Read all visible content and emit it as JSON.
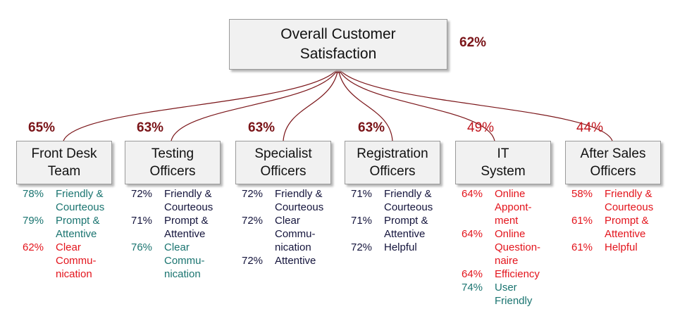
{
  "colors": {
    "good": "#1a7470",
    "bad": "#e3141c",
    "neutral": "#14143c",
    "accent": "#7a1418"
  },
  "root": {
    "title_line1": "Overall Customer",
    "title_line2": "Satisfaction",
    "pct": "62%"
  },
  "groups": [
    {
      "line1": "Front Desk",
      "line2": "Team",
      "pct": "65%",
      "bold": true,
      "items": [
        {
          "pct": "78%",
          "tone": "good",
          "lines": [
            "Friendly &",
            "Courteous"
          ]
        },
        {
          "pct": "79%",
          "tone": "good",
          "lines": [
            "Prompt &",
            "Attentive"
          ]
        },
        {
          "pct": "62%",
          "tone": "bad",
          "lines": [
            "Clear",
            "Commu-",
            "nication"
          ]
        }
      ]
    },
    {
      "line1": "Testing",
      "line2": "Officers",
      "pct": "63%",
      "bold": true,
      "items": [
        {
          "pct": "72%",
          "tone": "neutral",
          "lines": [
            "Friendly &",
            "Courteous"
          ]
        },
        {
          "pct": "71%",
          "tone": "neutral",
          "lines": [
            "Prompt &",
            "Attentive"
          ]
        },
        {
          "pct": "76%",
          "tone": "good",
          "lines": [
            "Clear",
            "Commu-",
            "nication"
          ]
        }
      ]
    },
    {
      "line1": "Specialist",
      "line2": "Officers",
      "pct": "63%",
      "bold": true,
      "items": [
        {
          "pct": "72%",
          "tone": "neutral",
          "lines": [
            "Friendly &",
            "Courteous"
          ]
        },
        {
          "pct": "72%",
          "tone": "neutral",
          "lines": [
            "Clear",
            "Commu-",
            "nication"
          ]
        },
        {
          "pct": "72%",
          "tone": "neutral",
          "lines": [
            "Attentive"
          ]
        }
      ]
    },
    {
      "line1": "Registration",
      "line2": "Officers",
      "pct": "63%",
      "bold": true,
      "items": [
        {
          "pct": "71%",
          "tone": "neutral",
          "lines": [
            "Friendly &",
            "Courteous"
          ]
        },
        {
          "pct": "71%",
          "tone": "neutral",
          "lines": [
            "Prompt &",
            "Attentive"
          ]
        },
        {
          "pct": "72%",
          "tone": "neutral",
          "lines": [
            "Helpful"
          ]
        }
      ]
    },
    {
      "line1": "IT",
      "line2": "System",
      "pct": "49%",
      "bold": false,
      "items": [
        {
          "pct": "64%",
          "tone": "bad",
          "lines": [
            "Online",
            "Appont-",
            "ment"
          ]
        },
        {
          "pct": "64%",
          "tone": "bad",
          "lines": [
            "Online",
            "Question-",
            "naire"
          ]
        },
        {
          "pct": "64%",
          "tone": "bad",
          "lines": [
            "Efficiency"
          ]
        },
        {
          "pct": "74%",
          "tone": "good",
          "lines": [
            "User",
            "Friendly"
          ]
        }
      ]
    },
    {
      "line1": "After Sales",
      "line2": "Officers",
      "pct": "44%",
      "bold": false,
      "items": [
        {
          "pct": "58%",
          "tone": "bad",
          "lines": [
            "Friendly &",
            "Courteous"
          ]
        },
        {
          "pct": "61%",
          "tone": "bad",
          "lines": [
            "Prompt &",
            "Attentive"
          ]
        },
        {
          "pct": "61%",
          "tone": "bad",
          "lines": [
            "Helpful"
          ]
        }
      ]
    }
  ]
}
